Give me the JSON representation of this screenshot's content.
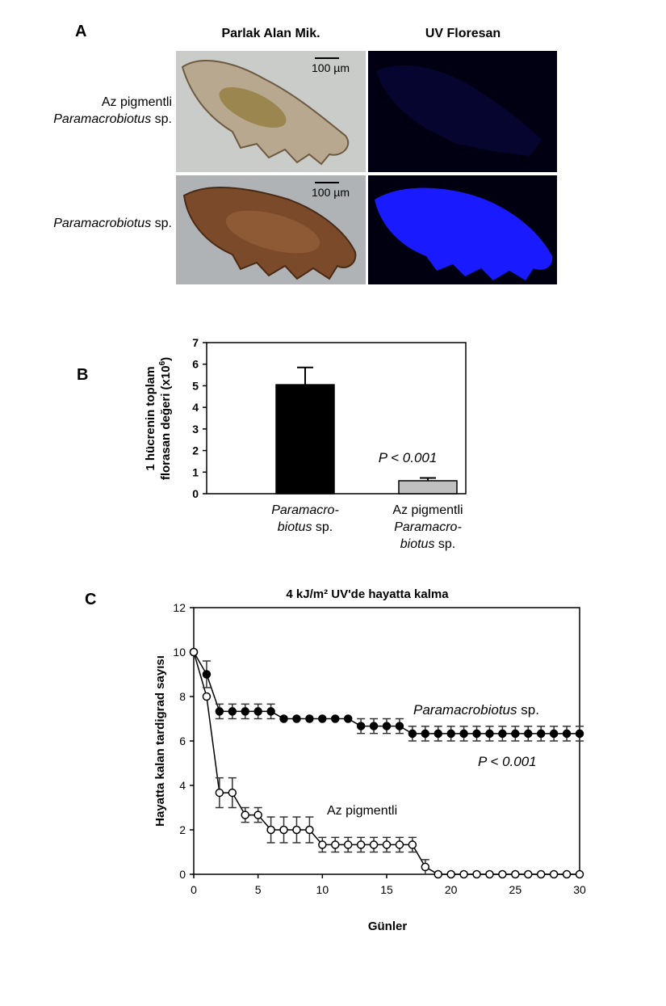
{
  "panel_a": {
    "letter": "A",
    "col_headers": [
      "Parlak Alan Mik.",
      "UV Floresan"
    ],
    "rows": [
      {
        "line1": "Az pigmentli",
        "italic": "Paramacrobiotus",
        "suffix": " sp.",
        "scale_bar": "100 µm"
      },
      {
        "line1": "",
        "italic": "Paramacrobiotus",
        "suffix": " sp.",
        "scale_bar": "100 µm"
      }
    ],
    "colors": {
      "fluorescence_strong": "#1a1aff",
      "fluorescence_weak": "#000018",
      "background_dark": "#000010"
    }
  },
  "chart_data": [
    {
      "panel": "B",
      "type": "bar",
      "ylabel_line1": "1 hücrenin toplam",
      "ylabel_line2": "florasan değeri (x10",
      "ylabel_sup": "6",
      "ylabel_end": ")",
      "ylim": [
        0,
        7
      ],
      "yticks": [
        "0",
        "1",
        "2",
        "3",
        "4",
        "5",
        "6",
        "7"
      ],
      "categories": [
        {
          "lines": [
            {
              "italic": "Paramacro-",
              "plain": ""
            },
            {
              "italic": "biotus",
              "plain": " sp."
            }
          ]
        },
        {
          "lines": [
            {
              "italic": "",
              "plain": "Az pigmentli"
            },
            {
              "italic": "Paramacro-",
              "plain": ""
            },
            {
              "italic": "biotus",
              "plain": " sp."
            }
          ]
        }
      ],
      "values": [
        5.05,
        0.6
      ],
      "errors": [
        0.8,
        0.13
      ],
      "colors": [
        "#000000",
        "#c0c0c0"
      ],
      "annotation": "P < 0.001"
    },
    {
      "panel": "C",
      "type": "line",
      "title": "4 kJ/m² UV'de hayatta kalma",
      "xlabel": "Günler",
      "ylabel": "Hayatta kalan tardigrad sayısı",
      "xlim": [
        0,
        30
      ],
      "ylim": [
        0,
        12
      ],
      "xticks": [
        "0",
        "5",
        "10",
        "15",
        "20",
        "25",
        "30"
      ],
      "yticks": [
        "0",
        "2",
        "4",
        "6",
        "8",
        "10",
        "12"
      ],
      "series": [
        {
          "name": "Paramacrobiotus sp.",
          "marker": "filled-circle",
          "x": [
            0,
            1,
            2,
            3,
            4,
            5,
            6,
            7,
            8,
            9,
            10,
            11,
            12,
            13,
            14,
            15,
            16,
            17,
            18,
            19,
            20,
            21,
            22,
            23,
            24,
            25,
            26,
            27,
            28,
            29,
            30
          ],
          "y": [
            10,
            9,
            7.33,
            7.33,
            7.33,
            7.33,
            7.33,
            7,
            7,
            7,
            7,
            7,
            7,
            6.67,
            6.67,
            6.67,
            6.67,
            6.33,
            6.33,
            6.33,
            6.33,
            6.33,
            6.33,
            6.33,
            6.33,
            6.33,
            6.33,
            6.33,
            6.33,
            6.33,
            6.33
          ],
          "err": [
            0,
            0.6,
            0.33,
            0.33,
            0.33,
            0.33,
            0.33,
            0,
            0,
            0,
            0,
            0,
            0,
            0.33,
            0.33,
            0.33,
            0.33,
            0.33,
            0.33,
            0.33,
            0.33,
            0.33,
            0.33,
            0.33,
            0.33,
            0.33,
            0.33,
            0.33,
            0.33,
            0.33,
            0.33
          ]
        },
        {
          "name": "Az pigmentli",
          "marker": "open-circle",
          "x": [
            0,
            1,
            2,
            3,
            4,
            5,
            6,
            7,
            8,
            9,
            10,
            11,
            12,
            13,
            14,
            15,
            16,
            17,
            18,
            19,
            20,
            21,
            22,
            23,
            24,
            25,
            26,
            27,
            28,
            29,
            30
          ],
          "y": [
            10,
            8,
            3.67,
            3.67,
            2.67,
            2.67,
            2,
            2,
            2,
            2,
            1.33,
            1.33,
            1.33,
            1.33,
            1.33,
            1.33,
            1.33,
            1.33,
            0.33,
            0,
            0,
            0,
            0,
            0,
            0,
            0,
            0,
            0,
            0,
            0,
            0
          ],
          "err": [
            0,
            0,
            0.67,
            0.67,
            0.33,
            0.33,
            0.58,
            0.58,
            0.58,
            0.58,
            0.33,
            0.33,
            0.33,
            0.33,
            0.33,
            0.33,
            0.33,
            0.33,
            0.33,
            0,
            0,
            0,
            0,
            0,
            0,
            0,
            0,
            0,
            0,
            0,
            0
          ]
        }
      ],
      "series_labels": {
        "filled_italic": "Paramacrobiotus",
        "filled_plain": " sp.",
        "open": "Az pigmentli"
      },
      "annotation": "P < 0.001"
    }
  ],
  "panel_b_letter": "B",
  "panel_c_letter": "C"
}
